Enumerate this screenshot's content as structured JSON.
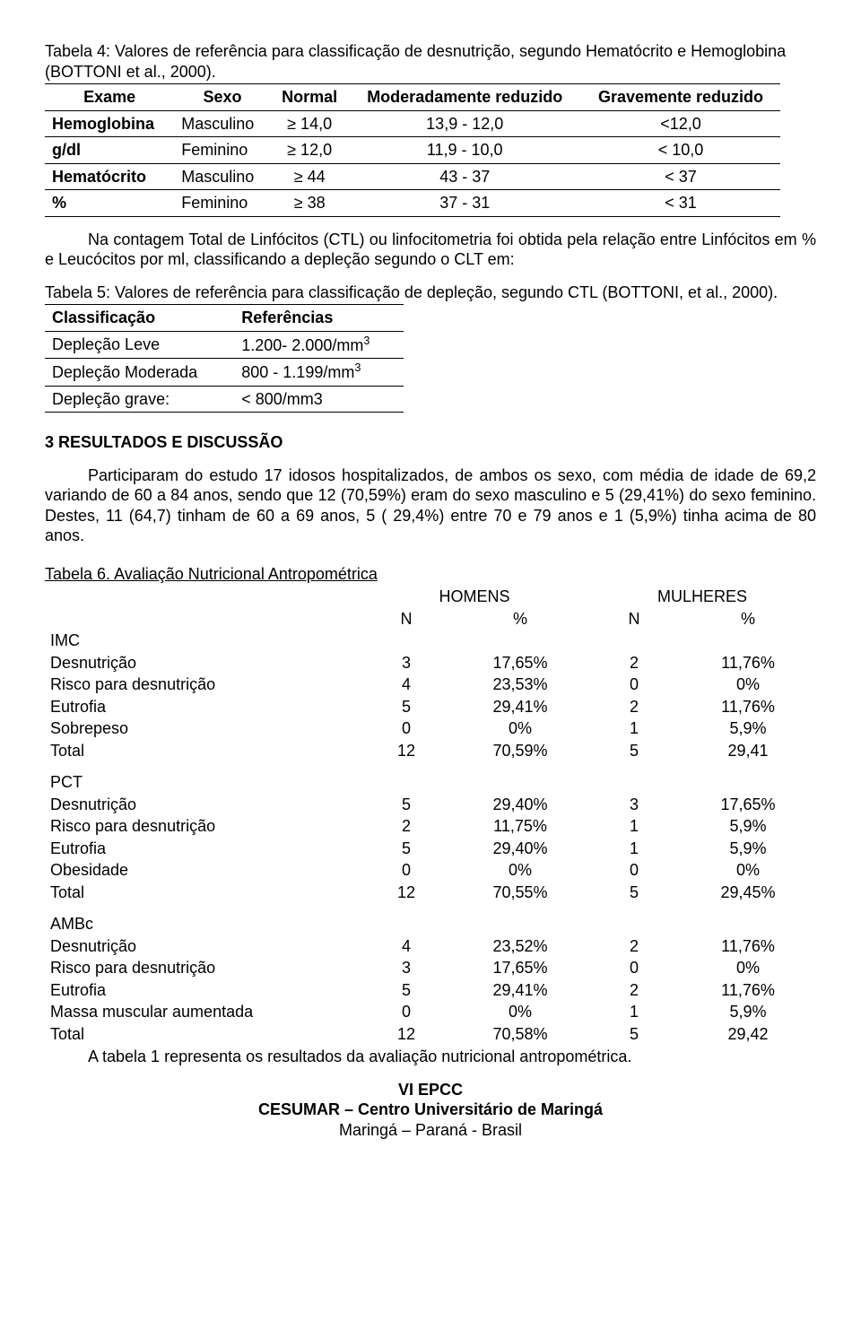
{
  "table4": {
    "caption": "Tabela 4: Valores de referência para classificação de desnutrição, segundo Hematócrito e Hemoglobina (BOTTONI et al., 2000).",
    "headers": [
      "Exame",
      "Sexo",
      "Normal",
      "Moderadamente reduzido",
      "Gravemente reduzido"
    ],
    "rows": [
      {
        "exam": "Hemoglobina",
        "sex": "Masculino",
        "normal": "≥ 14,0",
        "mod": "13,9 - 12,0",
        "grave": "<12,0"
      },
      {
        "exam": "g/dl",
        "sex": "Feminino",
        "normal": "≥ 12,0",
        "mod": "11,9 - 10,0",
        "grave": "< 10,0"
      },
      {
        "exam": "Hematócrito",
        "sex": "Masculino",
        "normal": "≥ 44",
        "mod": "43 - 37",
        "grave": "< 37"
      },
      {
        "exam": "%",
        "sex": "Feminino",
        "normal": "≥ 38",
        "mod": "37 - 31",
        "grave": "< 31"
      }
    ]
  },
  "para1": "Na contagem Total de Linfócitos (CTL) ou linfocitometria foi obtida pela relação entre Linfócitos em % e Leucócitos por ml, classificando a depleção segundo o CLT em:",
  "table5": {
    "caption": "Tabela 5: Valores de referência para classificação de depleção, segundo CTL (BOTTONI, et al., 2000).",
    "headers": [
      "Classificação",
      "Referências"
    ],
    "rows": [
      {
        "c": "Depleção Leve",
        "r": "1.200- 2.000/mm",
        "sup": "3"
      },
      {
        "c": "Depleção Moderada",
        "r": "800 - 1.199/mm",
        "sup": "3"
      },
      {
        "c": "Depleção grave:",
        "r": "< 800/mm3",
        "sup": ""
      }
    ]
  },
  "section_heading": "3 RESULTADOS E DISCUSSÃO",
  "para2": "Participaram do estudo 17 idosos hospitalizados, de ambos os sexo, com média de idade de 69,2 variando de 60 a 84 anos, sendo que 12 (70,59%) eram do sexo masculino e 5 (29,41%) do sexo feminino. Destes, 11 (64,7) tinham de 60 a 69 anos, 5 ( 29,4%) entre 70 e 79 anos e 1 (5,9%) tinha acima de 80 anos.",
  "table6": {
    "caption": "Tabela 6. Avaliação Nutricional Antropométrica",
    "col_groups": [
      "HOMENS",
      "MULHERES"
    ],
    "sub_headers": [
      "N",
      "%",
      "N",
      "%"
    ],
    "blocks": [
      {
        "title": "IMC",
        "rows": [
          {
            "l": "Desnutrição",
            "v": [
              "3",
              "17,65%",
              "2",
              "11,76%"
            ]
          },
          {
            "l": "Risco para desnutrição",
            "v": [
              "4",
              "23,53%",
              "0",
              "0%"
            ]
          },
          {
            "l": "Eutrofia",
            "v": [
              "5",
              "29,41%",
              "2",
              "11,76%"
            ]
          },
          {
            "l": "Sobrepeso",
            "v": [
              "0",
              "0%",
              "1",
              "5,9%"
            ]
          },
          {
            "l": "Total",
            "v": [
              "12",
              "70,59%",
              "5",
              "29,41"
            ]
          }
        ]
      },
      {
        "title": "PCT",
        "rows": [
          {
            "l": "Desnutrição",
            "v": [
              "5",
              "29,40%",
              "3",
              "17,65%"
            ]
          },
          {
            "l": "Risco para desnutrição",
            "v": [
              "2",
              "11,75%",
              "1",
              "5,9%"
            ]
          },
          {
            "l": "Eutrofia",
            "v": [
              "5",
              "29,40%",
              "1",
              "5,9%"
            ]
          },
          {
            "l": "Obesidade",
            "v": [
              "0",
              "0%",
              "0",
              "0%"
            ]
          },
          {
            "l": "Total",
            "v": [
              "12",
              "70,55%",
              "5",
              "29,45%"
            ]
          }
        ]
      },
      {
        "title": "AMBc",
        "rows": [
          {
            "l": "Desnutrição",
            "v": [
              "4",
              "23,52%",
              "2",
              "11,76%"
            ]
          },
          {
            "l": "Risco para desnutrição",
            "v": [
              "3",
              "17,65%",
              "0",
              "0%"
            ]
          },
          {
            "l": "Eutrofia",
            "v": [
              "5",
              "29,41%",
              "2",
              "11,76%"
            ]
          },
          {
            "l": "Massa muscular aumentada",
            "v": [
              "0",
              "0%",
              "1",
              "5,9%"
            ]
          },
          {
            "l": "Total",
            "v": [
              "12",
              "70,58%",
              "5",
              "29,42"
            ]
          }
        ]
      }
    ],
    "footnote": "A tabela 1 representa os resultados da avaliação nutricional antropométrica."
  },
  "footer": {
    "l1": "VI EPCC",
    "l2": "CESUMAR – Centro Universitário de Maringá",
    "l3": "Maringá – Paraná - Brasil"
  }
}
